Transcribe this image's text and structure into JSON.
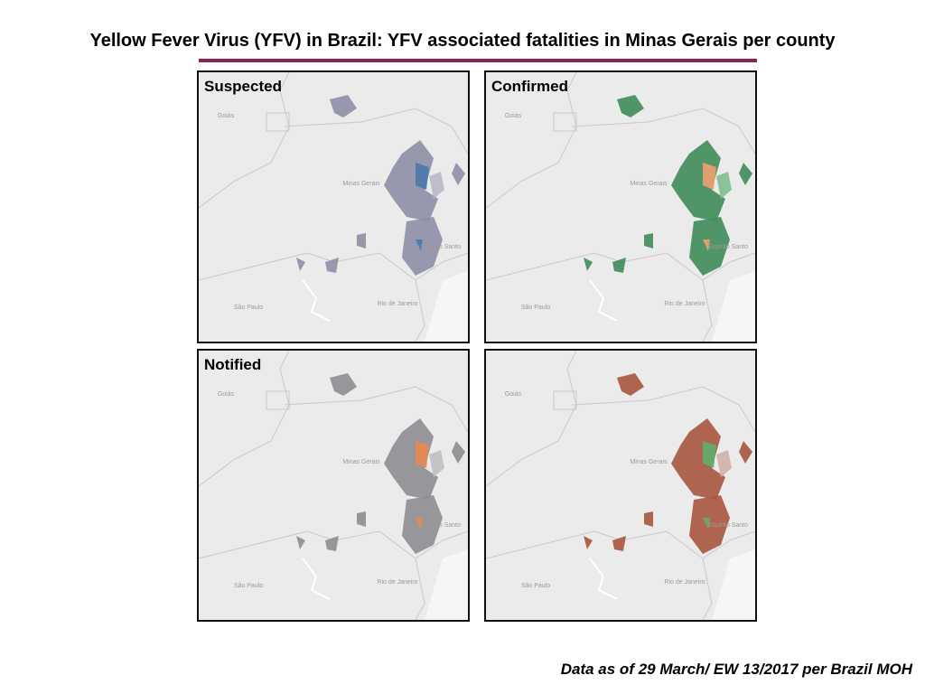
{
  "header": {
    "title": "Yellow Fever Virus (YFV) in Brazil: YFV associated fatalities in Minas Gerais per county"
  },
  "panels": [
    {
      "label": "Suspected"
    },
    {
      "label": "Confirmed"
    },
    {
      "label": "Notified"
    }
  ],
  "map_labels": [
    "Goiás",
    "Minas Gerais",
    "Espírito Santo",
    "São Paulo",
    "Rio de Janeiro"
  ],
  "footer": "Data as of 29 March/ EW 13/2017 per Brazil MOH"
}
